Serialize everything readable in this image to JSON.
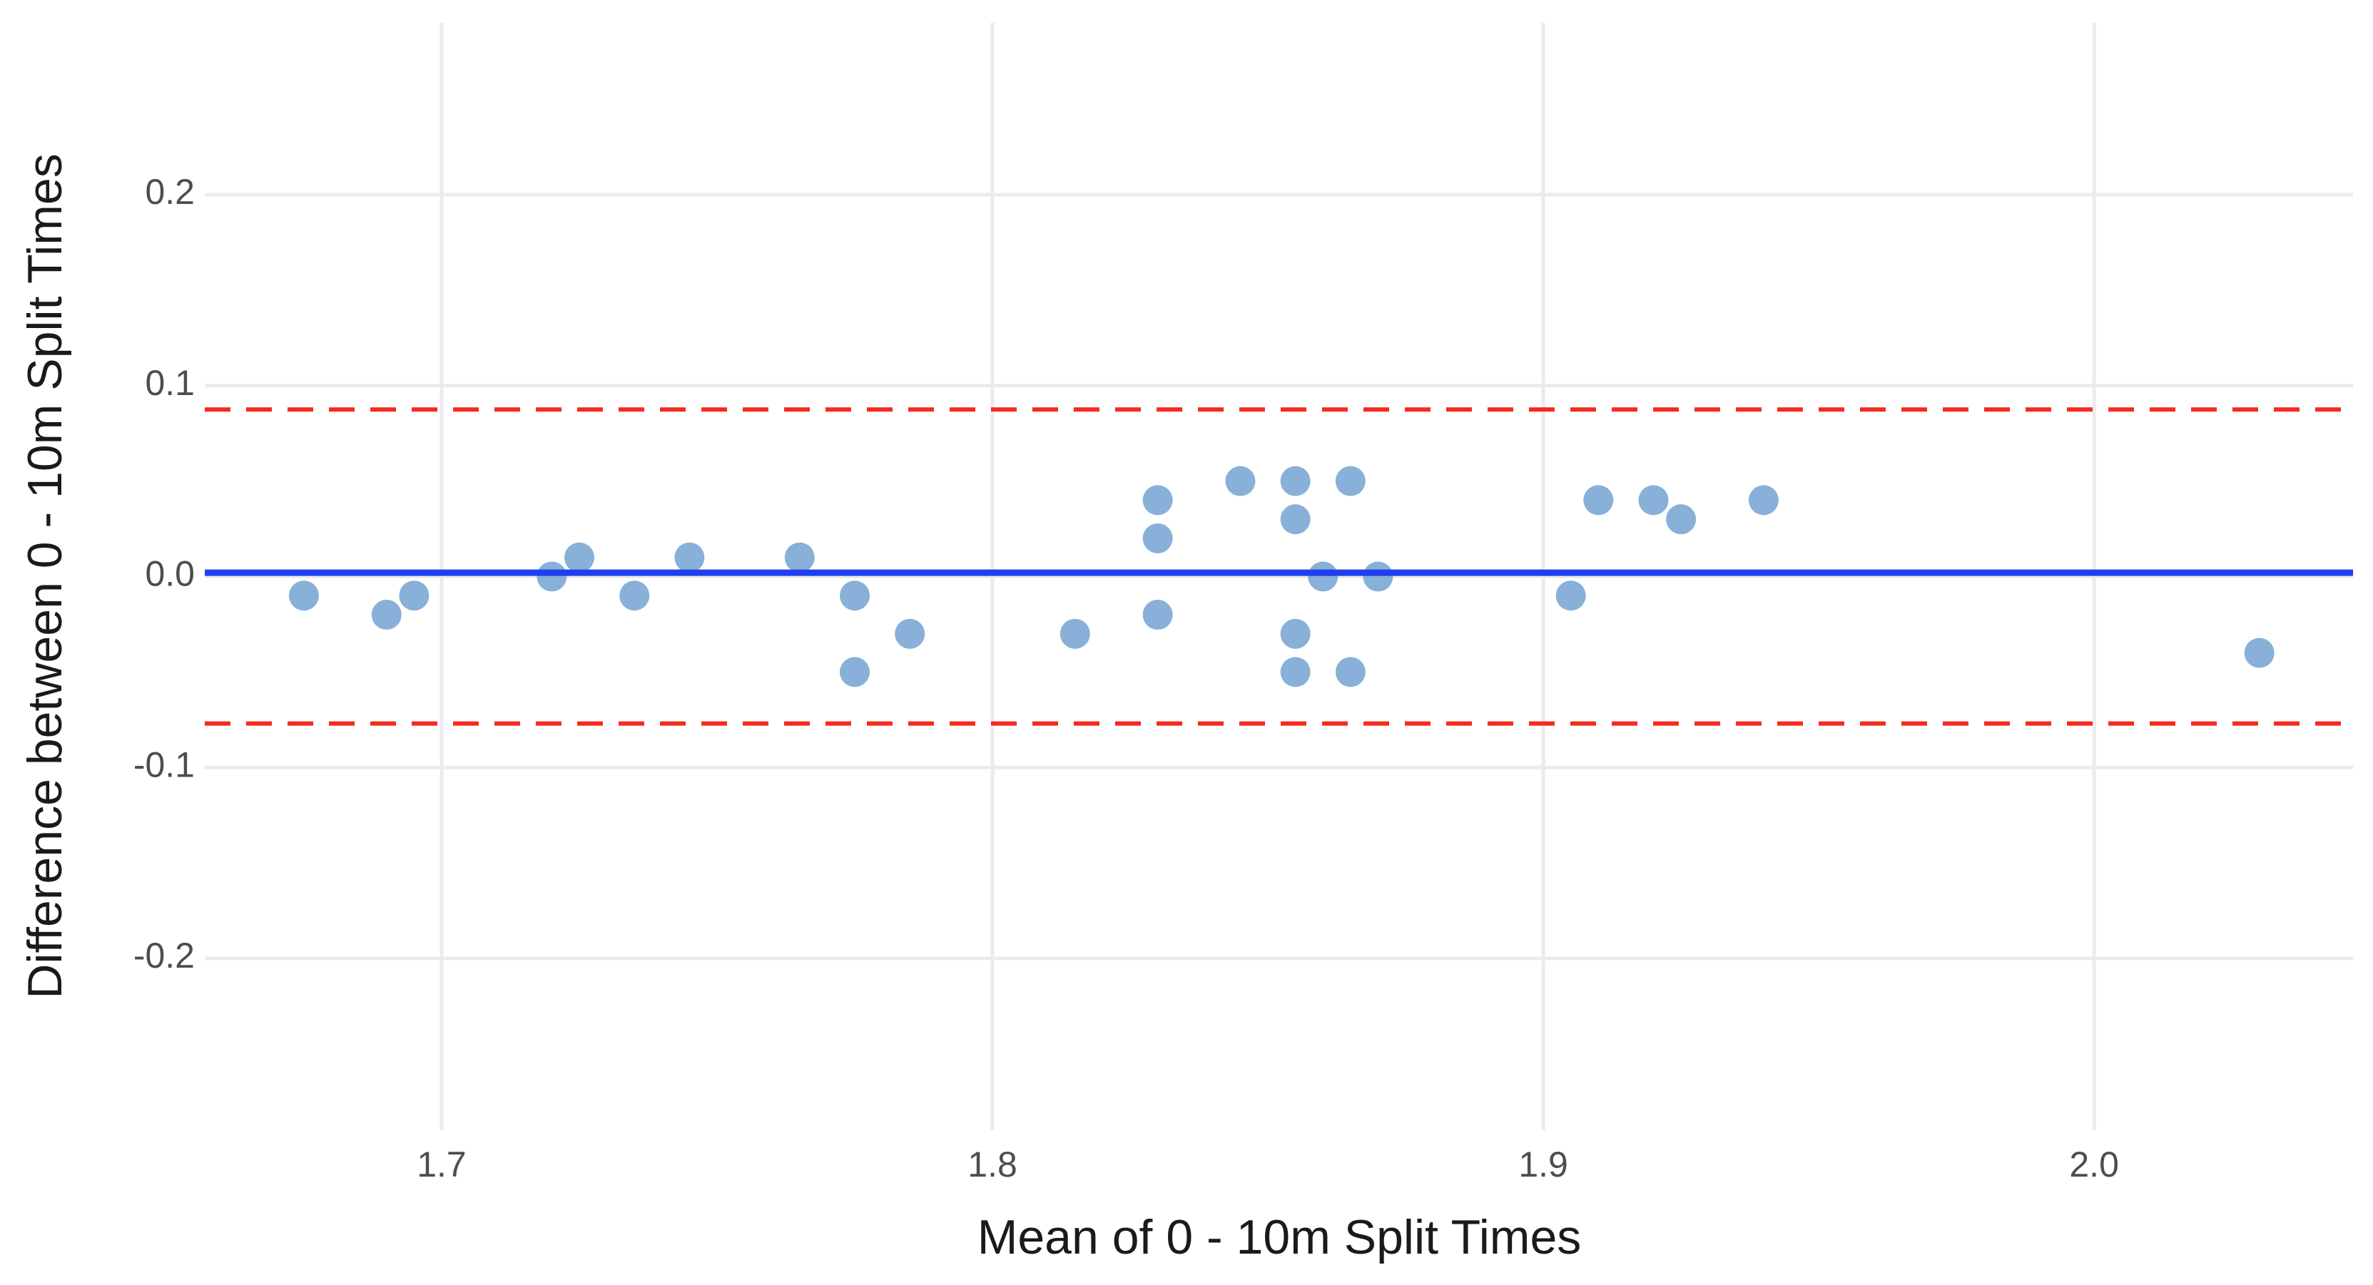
{
  "chart_data": {
    "type": "scatter",
    "x_label": "Mean of 0 - 10m Split Times",
    "y_label": "Difference between 0 - 10m Split Times",
    "x": [
      1.675,
      1.69,
      1.695,
      1.72,
      1.725,
      1.735,
      1.745,
      1.765,
      1.775,
      1.775,
      1.785,
      1.815,
      1.83,
      1.83,
      1.83,
      1.845,
      1.855,
      1.855,
      1.855,
      1.855,
      1.86,
      1.865,
      1.865,
      1.87,
      1.905,
      1.91,
      1.92,
      1.925,
      1.94,
      2.03
    ],
    "series": [
      {
        "color": "#7ba7d4",
        "values": [
          -0.01,
          -0.02,
          -0.01,
          0,
          0.01,
          -0.01,
          0.01,
          0.01,
          -0.01,
          -0.05,
          -0.03,
          -0.03,
          0.04,
          0.02,
          -0.02,
          0.05,
          0.05,
          0.03,
          -0.03,
          -0.05,
          0,
          0.05,
          -0.05,
          0,
          -0.01,
          0.04,
          0.04,
          0.03,
          0.04,
          -0.04
        ]
      }
    ],
    "hlines": [
      {
        "value": 0.002,
        "color": "#1f3fef",
        "style": "solid"
      },
      {
        "value": 0.0875,
        "color": "#f52a1e",
        "style": "dashed"
      },
      {
        "value": -0.077,
        "color": "#f52a1e",
        "style": "dashed"
      }
    ],
    "xlim": [
      1.657,
      2.047
    ],
    "ylim": [
      -0.29,
      0.29
    ],
    "xticks": [
      1.7,
      1.8,
      1.9,
      {
        "value": 2.0,
        "label": "2.0"
      }
    ],
    "yticks": [
      {
        "value": -0.2,
        "label": "-0.2"
      },
      {
        "value": -0.1,
        "label": "-0.1"
      },
      {
        "value": 0.0,
        "label": "0.0"
      },
      0.1,
      0.2
    ],
    "grid": true
  }
}
